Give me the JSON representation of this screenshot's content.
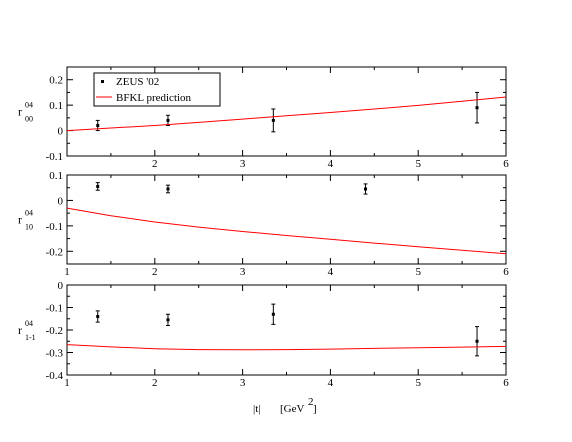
{
  "chart_data": [
    {
      "type": "line",
      "ylabel": {
        "main": "r",
        "sup": "04",
        "sub": "00"
      },
      "xlim": [
        1,
        6
      ],
      "ylim": [
        -0.1,
        0.25
      ],
      "yticks": [
        -0.1,
        0,
        0.1,
        0.2
      ],
      "yticklabels": [
        "-0.1",
        "0",
        "0.1",
        "0.2"
      ],
      "xticks": [
        2,
        3,
        4,
        5,
        6
      ],
      "xticklabels": [
        "2",
        "3",
        "4",
        "5",
        "6"
      ],
      "legend": {
        "position": "top-left",
        "entries": [
          "ZEUS '02",
          "BFKL prediction"
        ]
      },
      "series": [
        {
          "name": "ZEUS '02",
          "kind": "errorbar",
          "x": [
            1.35,
            2.15,
            3.35,
            5.67
          ],
          "y": [
            0.02,
            0.04,
            0.04,
            0.09
          ],
          "err": [
            0.02,
            0.02,
            0.045,
            0.06
          ]
        },
        {
          "name": "BFKL prediction",
          "kind": "line",
          "color": "#ff0000",
          "x": [
            1.0,
            1.5,
            2.0,
            2.5,
            3.0,
            3.5,
            4.0,
            4.5,
            5.0,
            5.5,
            6.0
          ],
          "y": [
            0.0,
            0.01,
            0.02,
            0.032,
            0.045,
            0.058,
            0.071,
            0.085,
            0.099,
            0.115,
            0.132
          ]
        }
      ]
    },
    {
      "type": "line",
      "ylabel": {
        "main": "r",
        "sup": "04",
        "sub": "10"
      },
      "xlim": [
        1,
        6
      ],
      "ylim": [
        -0.25,
        0.1
      ],
      "yticks": [
        -0.2,
        -0.1,
        0,
        0.1
      ],
      "yticklabels": [
        "-0.2",
        "-0.1",
        "0",
        "0.1"
      ],
      "xticks": [
        1,
        2,
        3,
        4,
        5,
        6
      ],
      "xticklabels": [
        "1",
        "2",
        "3",
        "4",
        "5",
        "6"
      ],
      "series": [
        {
          "name": "ZEUS '02",
          "kind": "errorbar",
          "x": [
            1.35,
            2.15,
            4.4
          ],
          "y": [
            0.055,
            0.045,
            0.045
          ],
          "err": [
            0.015,
            0.015,
            0.02
          ]
        },
        {
          "name": "BFKL prediction",
          "kind": "line",
          "color": "#ff0000",
          "x": [
            1.0,
            1.5,
            2.0,
            2.5,
            3.0,
            3.5,
            4.0,
            4.5,
            5.0,
            5.5,
            6.0
          ],
          "y": [
            -0.03,
            -0.06,
            -0.085,
            -0.105,
            -0.122,
            -0.138,
            -0.153,
            -0.168,
            -0.182,
            -0.196,
            -0.21
          ]
        }
      ]
    },
    {
      "type": "line",
      "ylabel": {
        "main": "r",
        "sup": "04",
        "sub": "1-1"
      },
      "xlim": [
        1,
        6
      ],
      "ylim": [
        -0.4,
        0
      ],
      "yticks": [
        -0.4,
        -0.3,
        -0.2,
        -0.1,
        0
      ],
      "yticklabels": [
        "-0.4",
        "-0.3",
        "-0.2",
        "-0.1",
        "0"
      ],
      "xticks": [
        1,
        2,
        3,
        4,
        5,
        6
      ],
      "xticklabels": [
        "1",
        "2",
        "3",
        "4",
        "5",
        "6"
      ],
      "xlabel": {
        "left": "|t|",
        "right": "[GeV",
        "sup": "2",
        "close": "]"
      },
      "series": [
        {
          "name": "ZEUS '02",
          "kind": "errorbar",
          "x": [
            1.35,
            2.15,
            3.35,
            5.67
          ],
          "y": [
            -0.14,
            -0.155,
            -0.13,
            -0.25
          ],
          "err": [
            0.025,
            0.025,
            0.045,
            0.065
          ]
        },
        {
          "name": "BFKL prediction",
          "kind": "line",
          "color": "#ff0000",
          "x": [
            1.0,
            1.5,
            2.0,
            2.5,
            3.0,
            3.5,
            4.0,
            4.5,
            5.0,
            5.5,
            6.0
          ],
          "y": [
            -0.265,
            -0.275,
            -0.283,
            -0.287,
            -0.288,
            -0.287,
            -0.285,
            -0.282,
            -0.279,
            -0.276,
            -0.273
          ]
        }
      ]
    }
  ]
}
